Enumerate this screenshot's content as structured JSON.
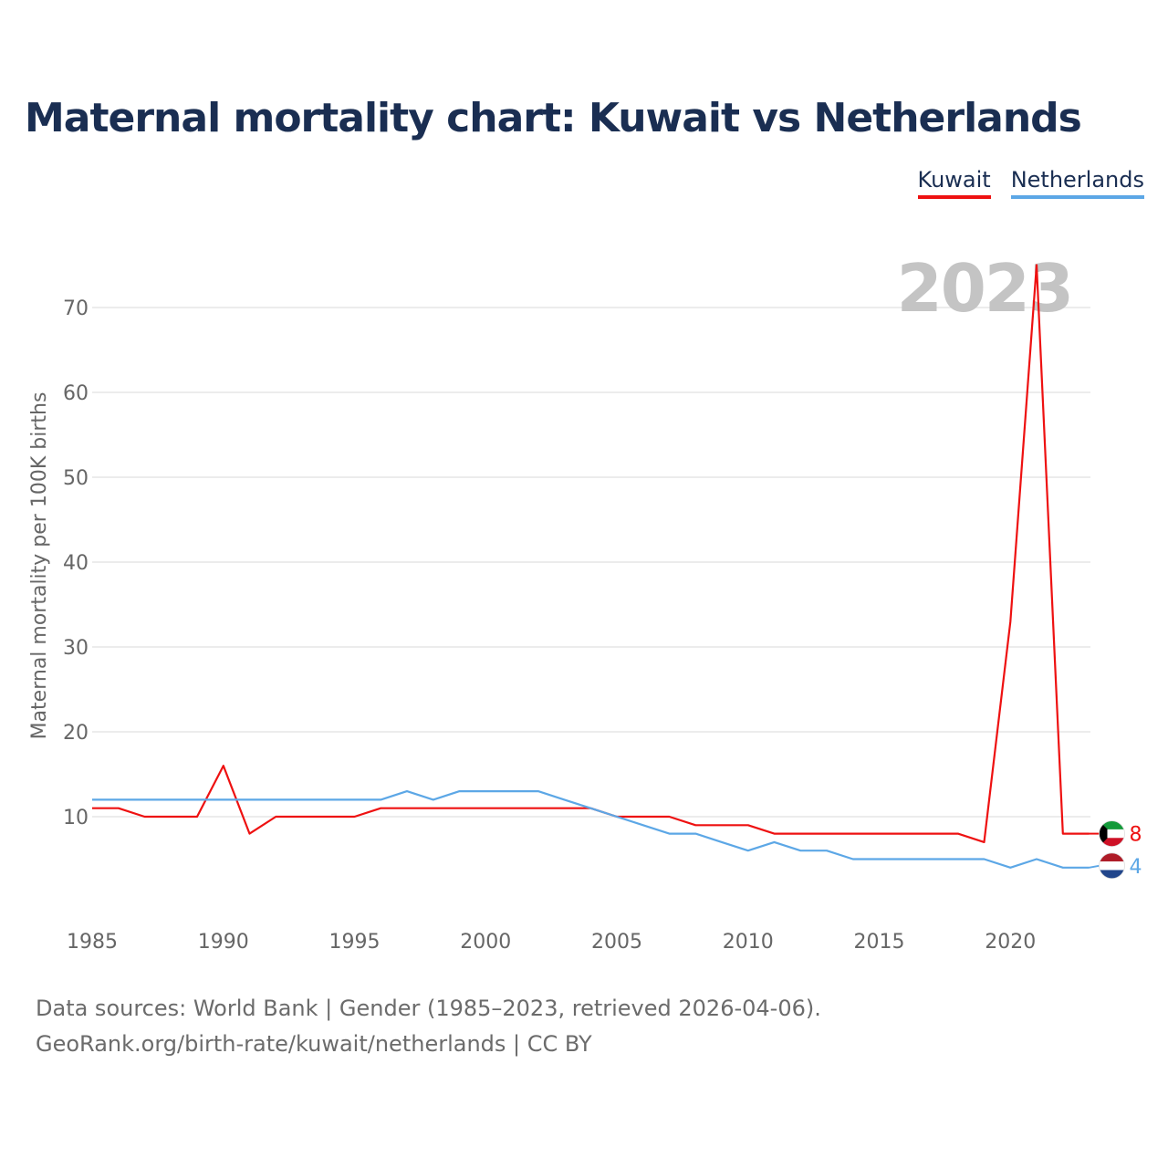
{
  "title": "Maternal mortality chart: Kuwait vs Netherlands",
  "legend": {
    "kuwait": "Kuwait",
    "netherlands": "Netherlands"
  },
  "colors": {
    "kuwait": "#ee1111",
    "netherlands": "#5ca7e6",
    "grid": "#e6e6e6",
    "axis_text": "#666666",
    "year_watermark": "#c4c4c4"
  },
  "source": {
    "line1": "Data sources: World Bank | Gender (1985–2023, retrieved 2026-04-06).",
    "line2": "GeoRank.org/birth-rate/kuwait/netherlands | CC BY"
  },
  "chart_data": {
    "type": "line",
    "title": "Maternal mortality chart: Kuwait vs Netherlands",
    "xlabel": "",
    "ylabel": "Maternal mortality per 100K births",
    "year_label": "2023",
    "x": [
      1985,
      1986,
      1987,
      1988,
      1989,
      1990,
      1991,
      1992,
      1993,
      1994,
      1995,
      1996,
      1997,
      1998,
      1999,
      2000,
      2001,
      2002,
      2003,
      2004,
      2005,
      2006,
      2007,
      2008,
      2009,
      2010,
      2011,
      2012,
      2013,
      2014,
      2015,
      2016,
      2017,
      2018,
      2019,
      2020,
      2021,
      2022,
      2023
    ],
    "xlim": [
      1985,
      2023
    ],
    "ylim": [
      0,
      75
    ],
    "x_ticks": [
      "1985",
      "1990",
      "1995",
      "2000",
      "2005",
      "2010",
      "2015",
      "2020"
    ],
    "y_ticks": [
      "10",
      "20",
      "30",
      "40",
      "50",
      "60",
      "70"
    ],
    "series": [
      {
        "name": "Kuwait",
        "values": [
          11,
          11,
          10,
          10,
          10,
          16,
          8,
          10,
          10,
          10,
          10,
          11,
          11,
          11,
          11,
          11,
          11,
          11,
          11,
          11,
          10,
          10,
          10,
          9,
          9,
          9,
          8,
          8,
          8,
          8,
          8,
          8,
          8,
          8,
          7,
          33,
          75,
          8,
          8
        ],
        "end_label": "8"
      },
      {
        "name": "Netherlands",
        "values": [
          12,
          12,
          12,
          12,
          12,
          12,
          12,
          12,
          12,
          12,
          12,
          12,
          13,
          12,
          13,
          13,
          13,
          13,
          12,
          11,
          10,
          9,
          8,
          8,
          7,
          6,
          7,
          6,
          6,
          5,
          5,
          5,
          5,
          5,
          5,
          4,
          5,
          4,
          4
        ],
        "end_label": "4"
      }
    ]
  }
}
